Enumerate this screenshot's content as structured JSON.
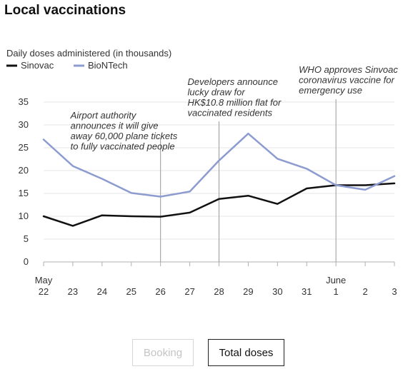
{
  "title": "Local vaccinations",
  "controls": {
    "buttons": [
      {
        "label": "Booking",
        "active": false
      },
      {
        "label": "Total doses",
        "active": true
      }
    ]
  },
  "colors": {
    "sinovac": "#111111",
    "biontech": "#8c9bd0",
    "annotation": "#999999"
  },
  "chart_data": {
    "type": "line",
    "ylabel": "Daily doses administered (in thousands)",
    "ylim": [
      0,
      35
    ],
    "yticks": [
      0,
      5,
      10,
      15,
      20,
      25,
      30,
      35
    ],
    "categories": [
      "May 22",
      "May 23",
      "May 24",
      "May 25",
      "May 26",
      "May 27",
      "May 28",
      "May 29",
      "May 30",
      "May 31",
      "June 1",
      "June 2",
      "June 3"
    ],
    "x_tick_labels": [
      "22",
      "23",
      "24",
      "25",
      "26",
      "27",
      "28",
      "29",
      "30",
      "31",
      "1",
      "2",
      "3"
    ],
    "month_labels": [
      {
        "index": 0,
        "label": "May"
      },
      {
        "index": 10,
        "label": "June"
      }
    ],
    "legend": {
      "placement": "top-left"
    },
    "grid": true,
    "series": [
      {
        "name": "Sinovac",
        "color": "#111111",
        "values": [
          10,
          7.9,
          10.2,
          10,
          9.9,
          10.8,
          13.8,
          14.5,
          12.7,
          16.1,
          16.8,
          16.8,
          17.2
        ]
      },
      {
        "name": "BioNTech",
        "color": "#8c9bd0",
        "values": [
          26.8,
          21,
          18.2,
          15.1,
          14.3,
          15.4,
          22.2,
          28.1,
          22.6,
          20.4,
          16.8,
          15.8,
          18.8
        ]
      }
    ],
    "annotations": [
      {
        "index": 4,
        "lines": [
          "Airport authority",
          "announces it will give",
          "away 60,000 plane tickets",
          "to fully vaccinated people"
        ]
      },
      {
        "index": 6,
        "lines": [
          "Developers announce",
          "lucky draw for",
          "HK$10.8 million flat for",
          "vaccinated residents"
        ]
      },
      {
        "index": 10,
        "lines": [
          "WHO approves Sinvoac",
          "coronavirus vaccine for",
          "emergency use"
        ]
      }
    ]
  }
}
